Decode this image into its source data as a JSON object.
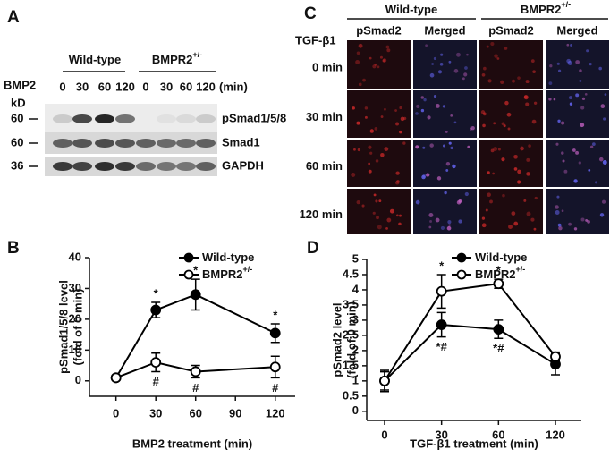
{
  "panel_a": {
    "label": "A",
    "groups": [
      {
        "name": "Wild-type"
      },
      {
        "name": "BMPR2",
        "superscript": "+/-"
      }
    ],
    "treatment": "BMP2",
    "unit_label": "kD",
    "lanes": [
      "0",
      "30",
      "60",
      "120",
      "0",
      "30",
      "60",
      "120"
    ],
    "time_unit": "(min)",
    "rows": [
      {
        "marker": "60",
        "name": "pSmad1/5/8"
      },
      {
        "marker": "60",
        "name": "Smad1"
      },
      {
        "marker": "36",
        "name": "GAPDH"
      }
    ]
  },
  "panel_c": {
    "label": "C",
    "groups": [
      {
        "name": "Wild-type"
      },
      {
        "name": "BMPR2",
        "superscript": "+/-"
      }
    ],
    "treatment": "TGF-β1",
    "columns": [
      "pSmad2",
      "Merged",
      "pSmad2",
      "Merged"
    ],
    "rows": [
      "0 min",
      "30 min",
      "60 min",
      "120 min"
    ]
  },
  "chart_data": [
    {
      "type": "line",
      "panel_label": "B",
      "x": [
        0,
        30,
        60,
        120
      ],
      "xlim": [
        -20,
        135
      ],
      "xticks": [
        0,
        30,
        60,
        90,
        120
      ],
      "ylim": [
        -5,
        40
      ],
      "yticks": [
        0,
        10,
        20,
        30,
        40
      ],
      "xlabel": "BMP2 treatment (min)",
      "ylabel": [
        "pSmad1/5/8 level",
        "(fold of 0 min)"
      ],
      "series": [
        {
          "name": "Wild-type",
          "color": "#000000",
          "marker": "filled",
          "values": [
            1,
            23,
            28,
            15.5
          ],
          "errors": [
            0.5,
            2.5,
            5,
            3
          ],
          "annotations": [
            null,
            "*",
            "*",
            "*"
          ],
          "annotation_position": "above"
        },
        {
          "name": "BMPR2",
          "superscript": "+/-",
          "color": "#000000",
          "marker": "open",
          "values": [
            1,
            6,
            3,
            4.5
          ],
          "errors": [
            0.5,
            3,
            2,
            3.5
          ],
          "annotations": [
            null,
            "#",
            "#",
            "#"
          ],
          "annotation_position": "below"
        }
      ]
    },
    {
      "type": "line",
      "panel_label": "D",
      "categories": [
        "0",
        "30",
        "60",
        "120"
      ],
      "ylim": [
        -0.3,
        5
      ],
      "yticks": [
        0,
        0.5,
        1,
        1.5,
        2,
        2.5,
        3,
        3.5,
        4,
        4.5,
        5
      ],
      "xlabel": "TGF-β1 treatment (min)",
      "ylabel": [
        "pSmad2 level",
        "(fold of 0 min)"
      ],
      "series": [
        {
          "name": "Wild-type",
          "color": "#000000",
          "marker": "filled",
          "values": [
            1.0,
            2.85,
            2.7,
            1.55
          ],
          "errors": [
            0.3,
            0.4,
            0.3,
            0.35
          ],
          "annotations": [
            null,
            "*#",
            "*#",
            null
          ],
          "annotation_position": "below"
        },
        {
          "name": "BMPR2",
          "superscript": "+/-",
          "color": "#000000",
          "marker": "open",
          "values": [
            1.0,
            3.95,
            4.2,
            1.8
          ],
          "errors": [
            0.35,
            0.55,
            0.15,
            0.15
          ],
          "annotations": [
            null,
            "*",
            "*",
            null
          ],
          "annotation_position": "above"
        }
      ]
    }
  ]
}
